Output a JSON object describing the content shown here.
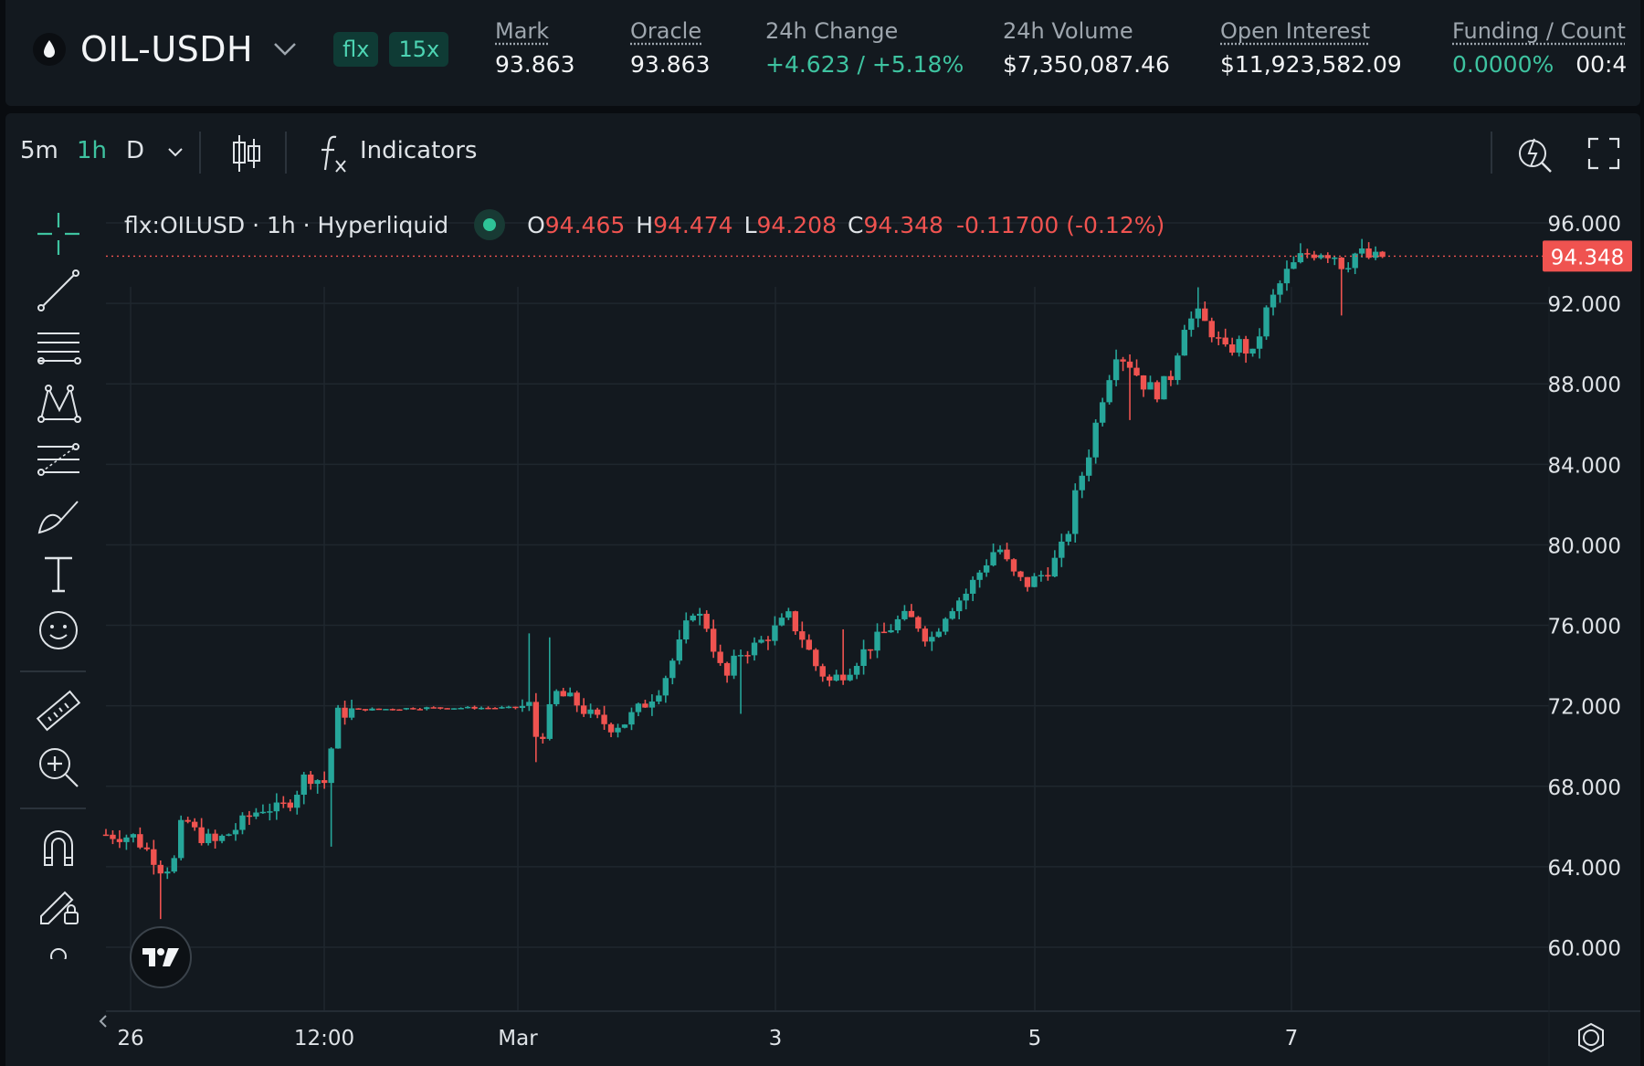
{
  "header": {
    "symbol": "OIL-USDH",
    "badges": [
      "flx",
      "15x"
    ],
    "stats": [
      {
        "label": "Mark",
        "value": "93.863",
        "underline": true
      },
      {
        "label": "Oracle",
        "value": "93.863",
        "underline": true
      },
      {
        "label": "24h Change",
        "value": "+4.623 / +5.18%",
        "underline": false
      },
      {
        "label": "24h Volume",
        "value": "$7,350,087.46",
        "underline": false
      },
      {
        "label": "Open Interest",
        "value": "$11,923,582.09",
        "underline": true
      },
      {
        "label": "Funding / Count",
        "value": "0.0000%",
        "value2": "00:4",
        "underline": true
      }
    ]
  },
  "toolbar": {
    "timeframes": [
      "5m",
      "1h",
      "D"
    ],
    "active_timeframe": "1h",
    "indicators_label": "Indicators"
  },
  "legend": {
    "title": "flx:OILUSD · 1h · Hyperliquid",
    "open_key": "O",
    "open": "94.465",
    "high_key": "H",
    "high": "94.474",
    "low_key": "L",
    "low": "94.208",
    "close_key": "C",
    "close": "94.348",
    "change": "-0.11700 (-0.12%)"
  },
  "colors": {
    "up": "#26a69a",
    "down": "#ef5350",
    "accent": "#3ec3a0",
    "bg": "#13191f"
  },
  "chart_data": {
    "type": "candlestick",
    "x_ticks": [
      "26",
      "12:00",
      "Mar",
      "3",
      "5",
      "7"
    ],
    "y_ticks": [
      "96.000",
      "92.000",
      "88.000",
      "84.000",
      "80.000",
      "76.000",
      "72.000",
      "68.000",
      "64.000",
      "60.000"
    ],
    "y_tick_values": [
      96,
      92,
      88,
      84,
      80,
      76,
      72,
      68,
      64,
      60
    ],
    "last_price_label": "94.348",
    "last_price": 94.348,
    "trend_points": [
      [
        0,
        65.6
      ],
      [
        12,
        65.5
      ],
      [
        20,
        64.6
      ],
      [
        25,
        63.8
      ],
      [
        30,
        64.3
      ],
      [
        34,
        66.5
      ],
      [
        40,
        65.6
      ],
      [
        48,
        65.2
      ],
      [
        56,
        65.8
      ],
      [
        64,
        66.6
      ],
      [
        70,
        67.0
      ],
      [
        76,
        66.8
      ],
      [
        82,
        67.4
      ],
      [
        88,
        68.6
      ],
      [
        92,
        68.4
      ],
      [
        96,
        68.2
      ],
      [
        102,
        71.6
      ],
      [
        110,
        71.8
      ],
      [
        140,
        71.9
      ],
      [
        180,
        71.9
      ],
      [
        186,
        72.0
      ],
      [
        190,
        70.0
      ],
      [
        194,
        71.4
      ],
      [
        198,
        72.6
      ],
      [
        206,
        72.2
      ],
      [
        214,
        71.4
      ],
      [
        222,
        71.0
      ],
      [
        228,
        71.2
      ],
      [
        236,
        72.0
      ],
      [
        244,
        73.0
      ],
      [
        252,
        75.0
      ],
      [
        258,
        76.8
      ],
      [
        264,
        76.0
      ],
      [
        268,
        74.6
      ],
      [
        272,
        73.2
      ],
      [
        278,
        74.6
      ],
      [
        286,
        75.0
      ],
      [
        294,
        75.8
      ],
      [
        300,
        76.4
      ],
      [
        306,
        75.4
      ],
      [
        312,
        74.0
      ],
      [
        318,
        73.2
      ],
      [
        326,
        73.8
      ],
      [
        334,
        74.8
      ],
      [
        342,
        75.6
      ],
      [
        350,
        76.4
      ],
      [
        356,
        76.2
      ],
      [
        362,
        75.2
      ],
      [
        370,
        76.8
      ],
      [
        378,
        77.6
      ],
      [
        386,
        79.0
      ],
      [
        392,
        80.0
      ],
      [
        398,
        78.6
      ],
      [
        404,
        78.0
      ],
      [
        410,
        78.4
      ],
      [
        416,
        79.0
      ],
      [
        422,
        80.2
      ],
      [
        426,
        82.4
      ],
      [
        432,
        84.6
      ],
      [
        438,
        87.4
      ],
      [
        444,
        89.6
      ],
      [
        450,
        89.0
      ],
      [
        456,
        88.0
      ],
      [
        462,
        87.6
      ],
      [
        468,
        88.4
      ],
      [
        474,
        91.0
      ],
      [
        480,
        91.4
      ],
      [
        486,
        90.6
      ],
      [
        492,
        89.6
      ],
      [
        498,
        90.0
      ],
      [
        504,
        89.4
      ],
      [
        510,
        91.6
      ],
      [
        518,
        93.4
      ],
      [
        526,
        94.4
      ],
      [
        534,
        94.6
      ],
      [
        540,
        94.4
      ],
      [
        544,
        93.8
      ],
      [
        550,
        94.6
      ],
      [
        556,
        94.2
      ],
      [
        562,
        94.35
      ]
    ],
    "wick_points": [
      [
        24,
        61.4
      ],
      [
        100,
        65.0
      ],
      [
        186,
        75.6
      ],
      [
        190,
        69.2
      ],
      [
        196,
        75.4
      ],
      [
        280,
        71.6
      ],
      [
        324,
        75.8
      ],
      [
        428,
        80.8
      ],
      [
        450,
        86.2
      ],
      [
        480,
        92.8
      ],
      [
        544,
        91.4
      ]
    ]
  }
}
